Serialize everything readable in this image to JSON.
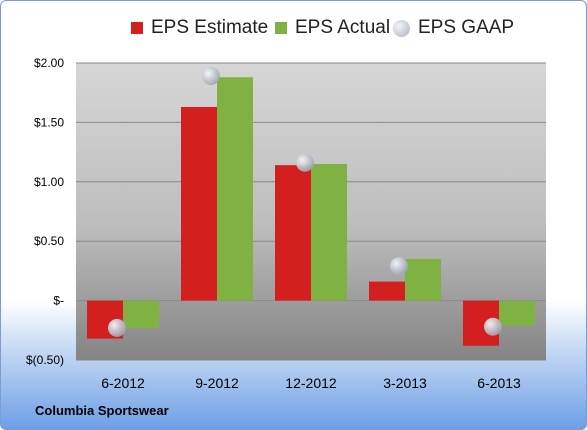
{
  "chart_data": {
    "type": "bar",
    "categories": [
      "6-2012",
      "9-2012",
      "12-2012",
      "3-2013",
      "6-2013"
    ],
    "series": [
      {
        "name": "EPS Estimate",
        "type": "bar",
        "color": "#d41f1f",
        "values": [
          -0.32,
          1.63,
          1.14,
          0.16,
          -0.38
        ]
      },
      {
        "name": "EPS Actual",
        "type": "bar",
        "color": "#7fb243",
        "values": [
          -0.23,
          1.88,
          1.15,
          0.35,
          -0.21
        ]
      },
      {
        "name": "EPS GAAP",
        "type": "marker",
        "color": "#b8bec8",
        "values": [
          -0.23,
          1.89,
          1.16,
          0.29,
          -0.22
        ]
      }
    ],
    "ylim": [
      -0.5,
      2.0
    ],
    "yticks": [
      -0.5,
      0,
      0.5,
      1.0,
      1.5,
      2.0
    ],
    "ytick_labels": [
      "$(0.50)",
      "$-",
      "$0.50",
      "$1.00",
      "$1.50",
      "$2.00"
    ],
    "grid": true,
    "legend_position": "top",
    "footer": "Columbia Sportswear"
  }
}
